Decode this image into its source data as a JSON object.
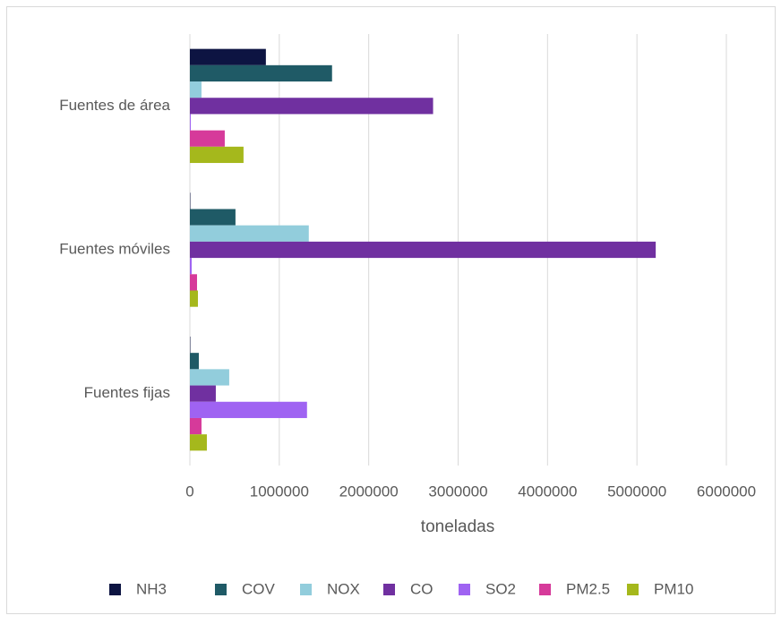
{
  "chart_data": {
    "type": "hbar",
    "categories": [
      "Fuentes de área",
      "Fuentes móviles",
      "Fuentes fijas"
    ],
    "series": [
      {
        "name": "NH3",
        "color": "#0d1442",
        "values": [
          850000,
          5000,
          5000
        ]
      },
      {
        "name": "COV",
        "color": "#1f5a66",
        "values": [
          1590000,
          510000,
          100000
        ]
      },
      {
        "name": "NOX",
        "color": "#92cddc",
        "values": [
          130000,
          1330000,
          440000
        ]
      },
      {
        "name": "CO",
        "color": "#7030a0",
        "values": [
          2720000,
          5210000,
          290000
        ]
      },
      {
        "name": "SO2",
        "color": "#9f63f2",
        "values": [
          10000,
          20000,
          1310000
        ]
      },
      {
        "name": "PM2.5",
        "color": "#d63a9a",
        "values": [
          390000,
          80000,
          130000
        ]
      },
      {
        "name": "PM10",
        "color": "#a5b81c",
        "values": [
          600000,
          90000,
          190000
        ]
      }
    ],
    "xlabel": "toneladas",
    "xlim": [
      0,
      6000000
    ],
    "xticks": [
      0,
      1000000,
      2000000,
      3000000,
      4000000,
      5000000,
      6000000
    ],
    "grid": true,
    "legend": "bottom"
  }
}
